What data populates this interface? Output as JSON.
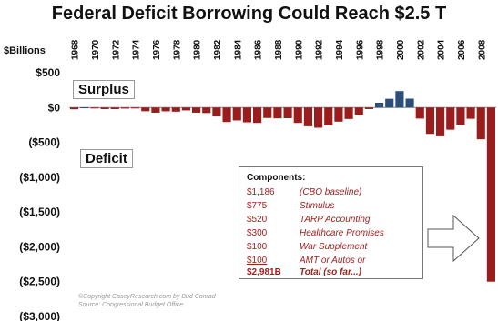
{
  "chart_data": {
    "type": "bar",
    "title": "Federal Deficit Borrowing Could Reach $2.5 T",
    "ylabel": "$Billions",
    "ylim": [
      -3000,
      500
    ],
    "yticks": [
      {
        "value": 500,
        "label": "$500"
      },
      {
        "value": 0,
        "label": "$0"
      },
      {
        "value": -500,
        "label": "($500)"
      },
      {
        "value": -1000,
        "label": "($1,000)"
      },
      {
        "value": -1500,
        "label": "($1,500)"
      },
      {
        "value": -2000,
        "label": "($2,000)"
      },
      {
        "value": -2500,
        "label": "($2,500)"
      },
      {
        "value": -3000,
        "label": "($3,000)"
      }
    ],
    "xtick_labels": [
      "1968",
      "1970",
      "1972",
      "1974",
      "1976",
      "1978",
      "1980",
      "1982",
      "1984",
      "1986",
      "1988",
      "1990",
      "1992",
      "1994",
      "1996",
      "1998",
      "2000",
      "2002",
      "2004",
      "2006",
      "2008"
    ],
    "categories": [
      "1968",
      "1969",
      "1970",
      "1971",
      "1972",
      "1973",
      "1974",
      "1975",
      "1976",
      "1977",
      "1978",
      "1979",
      "1980",
      "1981",
      "1982",
      "1983",
      "1984",
      "1985",
      "1986",
      "1987",
      "1988",
      "1989",
      "1990",
      "1991",
      "1992",
      "1993",
      "1994",
      "1995",
      "1996",
      "1997",
      "1998",
      "1999",
      "2000",
      "2001",
      "2002",
      "2003",
      "2004",
      "2005",
      "2006",
      "2007",
      "2008",
      "2009"
    ],
    "values": [
      -25,
      3,
      -3,
      -23,
      -23,
      -15,
      -6,
      -53,
      -74,
      -54,
      -59,
      -41,
      -74,
      -79,
      -128,
      -208,
      -185,
      -212,
      -221,
      -150,
      -155,
      -153,
      -221,
      -269,
      -290,
      -255,
      -203,
      -164,
      -107,
      -22,
      69,
      126,
      236,
      128,
      -158,
      -378,
      -413,
      -318,
      -248,
      -161,
      -455,
      -2500
    ],
    "colors": {
      "deficit": "#9b1c1c",
      "surplus": "#2b4f7a"
    },
    "annotations": {
      "surplus_label": "Surplus",
      "deficit_label": "Deficit"
    },
    "grid": false,
    "legend": "none"
  },
  "components": {
    "title": "Components:",
    "rows": [
      {
        "amount": "$1,186",
        "desc": "(CBO baseline)"
      },
      {
        "amount": "$775",
        "desc": "Stimulus"
      },
      {
        "amount": "$520",
        "desc": "TARP Accounting"
      },
      {
        "amount": "$300",
        "desc": "Healthcare Promises"
      },
      {
        "amount": "$100",
        "desc": "War Supplement"
      },
      {
        "amount": "$100",
        "desc": "AMT or Autos or"
      },
      {
        "amount": "$2,981B",
        "desc": "Total  (so far...)"
      }
    ]
  },
  "copyright": {
    "line1": "©Copyright CaseyResearch.com by  Bud Conrad",
    "line2": "Source: Congressional Budget Office"
  }
}
